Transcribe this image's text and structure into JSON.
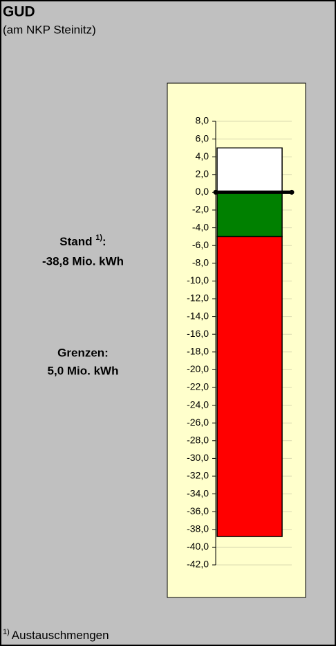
{
  "chart_data": {
    "type": "stacked_bar",
    "title": "GUD",
    "subtitle": "(am NKP Steinitz)",
    "series": [
      {
        "color": "#ffffff",
        "values": [
          5
        ]
      },
      {
        "color": "#008000",
        "values": [
          -5
        ]
      },
      {
        "color": "#ff0000",
        "values": [
          -33.8
        ]
      }
    ],
    "ylim": [
      -42,
      8
    ],
    "yticks": [
      {
        "value": 8,
        "label": "8,0"
      },
      {
        "value": 6,
        "label": "6,0"
      },
      {
        "value": 4,
        "label": "4,0"
      },
      {
        "value": 2,
        "label": "2,0"
      },
      {
        "value": 0,
        "label": "0,0"
      },
      {
        "value": -2,
        "label": "-2,0"
      },
      {
        "value": -4,
        "label": "-4,0"
      },
      {
        "value": -6,
        "label": "-6,0"
      },
      {
        "value": -8,
        "label": "-8,0"
      },
      {
        "value": -10,
        "label": "-10,0"
      },
      {
        "value": -12,
        "label": "-12,0"
      },
      {
        "value": -14,
        "label": "-14,0"
      },
      {
        "value": -16,
        "label": "-16,0"
      },
      {
        "value": -18,
        "label": "-18,0"
      },
      {
        "value": -20,
        "label": "-20,0"
      },
      {
        "value": -22,
        "label": "-22,0"
      },
      {
        "value": -24,
        "label": "-24,0"
      },
      {
        "value": -26,
        "label": "-26,0"
      },
      {
        "value": -28,
        "label": "-28,0"
      },
      {
        "value": -30,
        "label": "-30,0"
      },
      {
        "value": -32,
        "label": "-32,0"
      },
      {
        "value": -34,
        "label": "-34,0"
      },
      {
        "value": -36,
        "label": "-36,0"
      },
      {
        "value": -38,
        "label": "-38,0"
      },
      {
        "value": -40,
        "label": "-40,0"
      },
      {
        "value": -42,
        "label": "-42,0"
      }
    ],
    "grid": true
  },
  "info": {
    "stand_label": "Stand",
    "stand_note": "1)",
    "stand_colon": ":",
    "stand_value": "-38,8 Mio. kWh",
    "limits_label": "Grenzen:",
    "limits_value": "5,0 Mio. kWh"
  },
  "footnote": {
    "marker": "1)",
    "text": "Austauschmengen"
  }
}
